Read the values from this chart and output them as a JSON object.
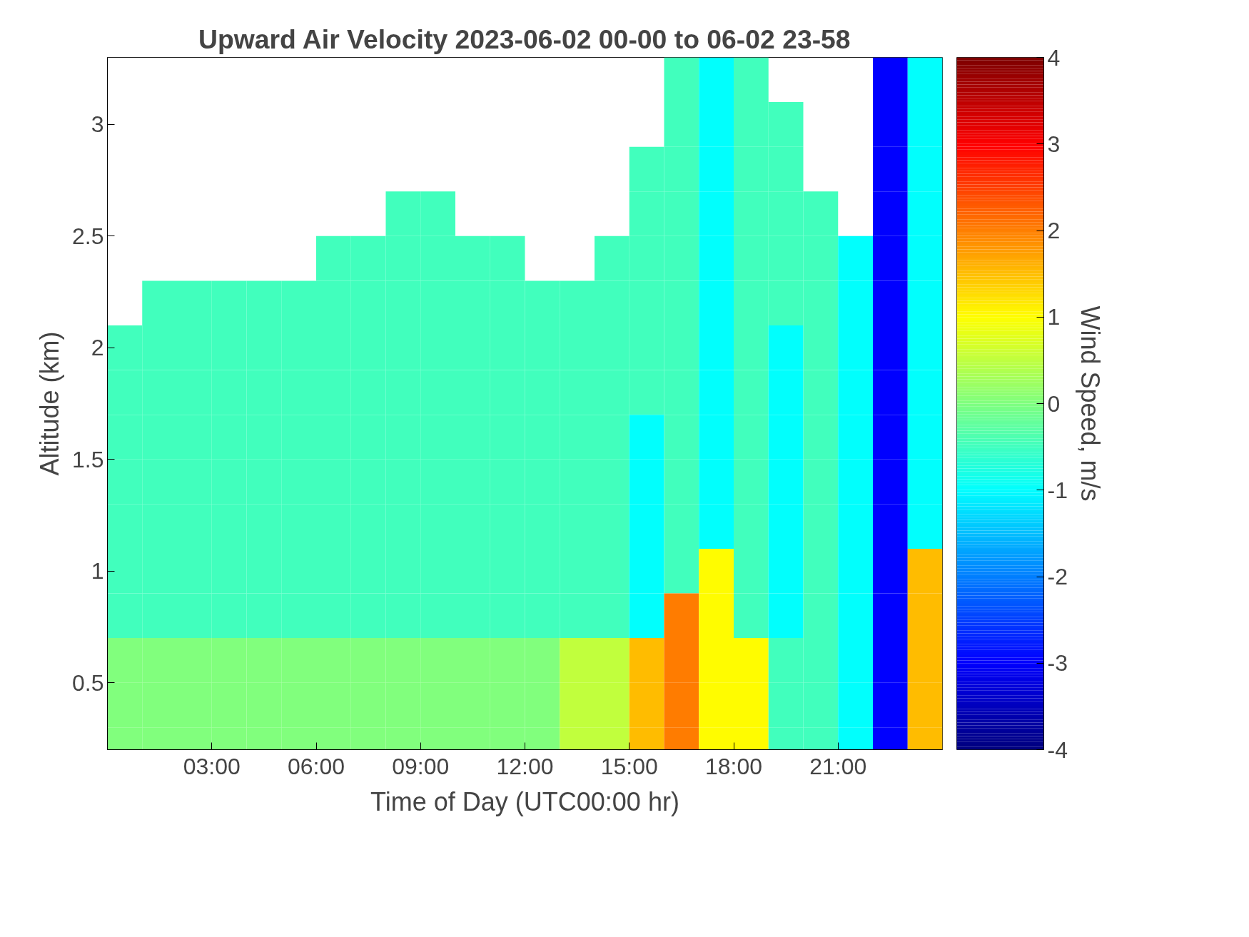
{
  "chart_data": {
    "type": "heatmap",
    "title": "Upward Air Velocity 2023-06-02 00-00 to 06-02 23-58",
    "xlabel": "Time of Day (UTC00:00 hr)",
    "ylabel": "Altitude (km)",
    "clabel": "Wind Speed, m/s",
    "x": [
      0.5,
      1.5,
      2.5,
      3.5,
      4.5,
      5.5,
      6.5,
      7.5,
      8.5,
      9.5,
      10.5,
      11.5,
      12.5,
      13.5,
      14.5,
      15.5,
      16.5,
      17.5,
      18.5,
      19.5,
      20.5,
      21.5,
      22.5,
      23.5
    ],
    "y": [
      3.2,
      3.0,
      2.8,
      2.6,
      2.4,
      2.2,
      2.0,
      1.8,
      1.6,
      1.4,
      1.2,
      1.0,
      0.8,
      0.6,
      0.4,
      0.2
    ],
    "cells": [
      [
        null,
        null,
        null,
        null,
        null,
        null,
        null,
        null,
        null,
        null,
        null,
        null,
        null,
        null,
        null,
        null,
        -0.5,
        -1,
        -0.5,
        null,
        null,
        null,
        -3,
        -1
      ],
      [
        null,
        null,
        null,
        null,
        null,
        null,
        null,
        null,
        null,
        null,
        null,
        null,
        null,
        null,
        null,
        null,
        -0.5,
        -1,
        -0.5,
        -0.5,
        null,
        null,
        -3,
        -1
      ],
      [
        null,
        null,
        null,
        null,
        null,
        null,
        null,
        null,
        null,
        null,
        null,
        null,
        null,
        null,
        null,
        -0.5,
        -0.5,
        -1,
        -0.5,
        -0.5,
        null,
        null,
        -3,
        -1
      ],
      [
        null,
        null,
        null,
        null,
        null,
        null,
        null,
        null,
        -0.5,
        -0.5,
        null,
        null,
        null,
        null,
        null,
        -0.5,
        -0.5,
        -1,
        -0.5,
        -0.5,
        -0.5,
        null,
        -3,
        -1
      ],
      [
        null,
        null,
        null,
        null,
        null,
        null,
        -0.5,
        -0.5,
        -0.5,
        -0.5,
        -0.5,
        -0.5,
        null,
        null,
        -0.5,
        -0.5,
        -0.5,
        -1,
        -0.5,
        -0.5,
        -0.5,
        -1,
        -3,
        -1
      ],
      [
        null,
        -0.5,
        -0.5,
        -0.5,
        -0.5,
        -0.5,
        -0.5,
        -0.5,
        -0.5,
        -0.5,
        -0.5,
        -0.5,
        -0.5,
        -0.5,
        -0.5,
        -0.5,
        -0.5,
        -1,
        -0.5,
        -0.5,
        -0.5,
        -1,
        -3,
        -1
      ],
      [
        -0.5,
        -0.5,
        -0.5,
        -0.5,
        -0.5,
        -0.5,
        -0.5,
        -0.5,
        -0.5,
        -0.5,
        -0.5,
        -0.5,
        -0.5,
        -0.5,
        -0.5,
        -0.5,
        -0.5,
        -1,
        -0.5,
        -1,
        -0.5,
        -1,
        -3,
        -1
      ],
      [
        -0.5,
        -0.5,
        -0.5,
        -0.5,
        -0.5,
        -0.5,
        -0.5,
        -0.5,
        -0.5,
        -0.5,
        -0.5,
        -0.5,
        -0.5,
        -0.5,
        -0.5,
        -0.5,
        -0.5,
        -1,
        -0.5,
        -1,
        -0.5,
        -1,
        -3,
        -1
      ],
      [
        -0.5,
        -0.5,
        -0.5,
        -0.5,
        -0.5,
        -0.5,
        -0.5,
        -0.5,
        -0.5,
        -0.5,
        -0.5,
        -0.5,
        -0.5,
        -0.5,
        -0.5,
        -1,
        -0.5,
        -1,
        -0.5,
        -1,
        -0.5,
        -1,
        -3,
        -1
      ],
      [
        -0.5,
        -0.5,
        -0.5,
        -0.5,
        -0.5,
        -0.5,
        -0.5,
        -0.5,
        -0.5,
        -0.5,
        -0.5,
        -0.5,
        -0.5,
        -0.5,
        -0.5,
        -1,
        -0.5,
        -1,
        -0.5,
        -1,
        -0.5,
        -1,
        -3,
        -1
      ],
      [
        -0.5,
        -0.5,
        -0.5,
        -0.5,
        -0.5,
        -0.5,
        -0.5,
        -0.5,
        -0.5,
        -0.5,
        -0.5,
        -0.5,
        -0.5,
        -0.5,
        -0.5,
        -1,
        -0.5,
        -1,
        -0.5,
        -1,
        -0.5,
        -1,
        -3,
        -1
      ],
      [
        -0.5,
        -0.5,
        -0.5,
        -0.5,
        -0.5,
        -0.5,
        -0.5,
        -0.5,
        -0.5,
        -0.5,
        -0.5,
        -0.5,
        -0.5,
        -0.5,
        -0.5,
        -1,
        -0.5,
        1,
        -0.5,
        -1,
        -0.5,
        -1,
        -3,
        1.5
      ],
      [
        -0.5,
        -0.5,
        -0.5,
        -0.5,
        -0.5,
        -0.5,
        -0.5,
        -0.5,
        -0.5,
        -0.5,
        -0.5,
        -0.5,
        -0.5,
        -0.5,
        -0.5,
        -1,
        2,
        1,
        -0.5,
        -1,
        -0.5,
        -1,
        -3,
        1.5
      ],
      [
        0,
        0,
        0,
        0,
        0,
        0,
        0,
        0,
        0,
        0,
        0,
        0,
        0,
        0.5,
        0.5,
        1.5,
        2,
        1,
        1,
        -0.5,
        -0.5,
        -1,
        -3,
        1.5
      ],
      [
        0,
        0,
        0,
        0,
        0,
        0,
        0,
        0,
        0,
        0,
        0,
        0,
        0,
        0.5,
        0.5,
        1.5,
        2,
        1,
        1,
        -0.5,
        -0.5,
        -1,
        -3,
        1.5
      ],
      [
        0,
        0,
        0,
        0,
        0,
        0,
        0,
        0,
        0,
        0,
        0,
        0,
        0,
        0.5,
        0.5,
        1.5,
        2,
        1,
        1,
        -0.5,
        -0.5,
        -1,
        -3,
        1.5
      ]
    ],
    "xlim": [
      0,
      24
    ],
    "xticks": [
      {
        "value": 3,
        "label": "03:00"
      },
      {
        "value": 6,
        "label": "06:00"
      },
      {
        "value": 9,
        "label": "09:00"
      },
      {
        "value": 12,
        "label": "12:00"
      },
      {
        "value": 15,
        "label": "15:00"
      },
      {
        "value": 18,
        "label": "18:00"
      },
      {
        "value": 21,
        "label": "21:00"
      }
    ],
    "ylim": [
      0.2,
      3.3
    ],
    "yticks": [
      0.5,
      1,
      1.5,
      2,
      2.5,
      3
    ],
    "clim": [
      -4,
      4
    ],
    "cticks": [
      -4,
      -3,
      -2,
      -1,
      0,
      1,
      2,
      3,
      4
    ]
  }
}
